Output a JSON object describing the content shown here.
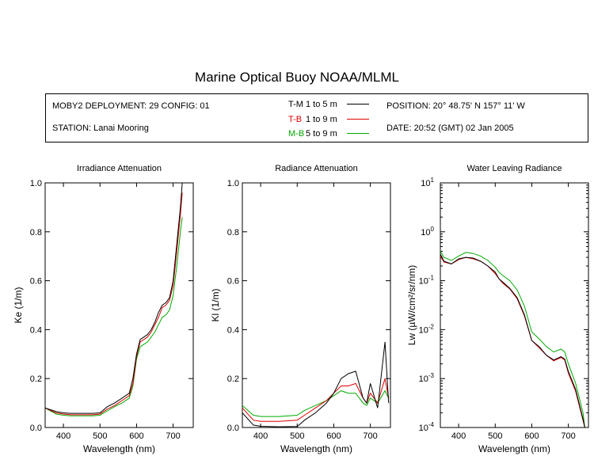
{
  "header": {
    "title": "Marine Optical Buoy NOAA/MLML",
    "deployment": "MOBY2 DEPLOYMENT: 29 CONFIG: 01",
    "station": "STATION: Lanai Mooring",
    "position": "POSITION: 20° 48.75' N   157° 11' W",
    "date": "DATE: 20:52 (GMT) 02 Jan 2005"
  },
  "legend": [
    {
      "label": "T-M",
      "range": "1 to 5  m",
      "color": "#000000",
      "label_color": "#000000"
    },
    {
      "label": "T-B",
      "range": "1 to 9  m",
      "color": "#dd0000",
      "label_color": "#dd0000"
    },
    {
      "label": "M-B",
      "range": "5 to 9  m",
      "color": "#00aa00",
      "label_color": "#00aa00"
    }
  ],
  "chart_data": [
    {
      "type": "line",
      "title": "Irradiance Attenuation",
      "xlabel": "Wavelength (nm)",
      "ylabel": "Ke  (1/m)",
      "xlim": [
        350,
        755
      ],
      "ylim": [
        0,
        1.0
      ],
      "yscale": "linear",
      "xticks": [
        "400",
        "500",
        "600",
        "700"
      ],
      "yticks": [
        "0.0",
        "0.2",
        "0.4",
        "0.6",
        "0.8",
        "1.0"
      ],
      "x": [
        350,
        380,
        400,
        420,
        450,
        480,
        500,
        520,
        540,
        560,
        580,
        590,
        600,
        610,
        620,
        630,
        640,
        650,
        660,
        670,
        680,
        690,
        700,
        710,
        720,
        725
      ],
      "series": [
        {
          "name": "T-M",
          "values": [
            0.08,
            0.065,
            0.06,
            0.058,
            0.058,
            0.058,
            0.06,
            0.085,
            0.1,
            0.12,
            0.14,
            0.2,
            0.3,
            0.36,
            0.37,
            0.38,
            0.4,
            0.43,
            0.47,
            0.5,
            0.51,
            0.53,
            0.6,
            0.75,
            0.9,
            1.0
          ]
        },
        {
          "name": "T-B",
          "values": [
            0.08,
            0.06,
            0.055,
            0.052,
            0.052,
            0.052,
            0.055,
            0.075,
            0.09,
            0.11,
            0.13,
            0.18,
            0.29,
            0.35,
            0.36,
            0.37,
            0.39,
            0.42,
            0.45,
            0.49,
            0.5,
            0.52,
            0.58,
            0.72,
            0.87,
            0.96
          ]
        },
        {
          "name": "M-B",
          "values": [
            0.08,
            0.055,
            0.05,
            0.048,
            0.048,
            0.048,
            0.05,
            0.068,
            0.085,
            0.1,
            0.12,
            0.17,
            0.28,
            0.33,
            0.34,
            0.35,
            0.37,
            0.39,
            0.42,
            0.45,
            0.46,
            0.48,
            0.54,
            0.66,
            0.8,
            0.86
          ]
        }
      ]
    },
    {
      "type": "line",
      "title": "Radiance Attenuation",
      "xlabel": "Wavelength (nm)",
      "ylabel": "Kl  (1/m)",
      "xlim": [
        350,
        755
      ],
      "ylim": [
        0,
        1.0
      ],
      "yscale": "linear",
      "xticks": [
        "400",
        "500",
        "600",
        "700"
      ],
      "yticks": [
        "0.0",
        "0.2",
        "0.4",
        "0.6",
        "0.8",
        "1.0"
      ],
      "x": [
        350,
        380,
        400,
        450,
        500,
        520,
        550,
        580,
        600,
        620,
        640,
        660,
        680,
        690,
        700,
        720,
        740,
        750
      ],
      "series": [
        {
          "name": "T-M",
          "values": [
            0.06,
            0.01,
            0.005,
            0.003,
            0.004,
            0.03,
            0.06,
            0.1,
            0.14,
            0.2,
            0.22,
            0.23,
            0.12,
            0.1,
            0.18,
            0.08,
            0.35,
            0.1
          ]
        },
        {
          "name": "T-B",
          "values": [
            0.08,
            0.03,
            0.025,
            0.025,
            0.03,
            0.05,
            0.08,
            0.11,
            0.14,
            0.17,
            0.17,
            0.18,
            0.12,
            0.1,
            0.14,
            0.1,
            0.2,
            0.12
          ]
        },
        {
          "name": "M-B",
          "values": [
            0.09,
            0.05,
            0.045,
            0.045,
            0.05,
            0.07,
            0.09,
            0.11,
            0.13,
            0.15,
            0.14,
            0.14,
            0.1,
            0.09,
            0.12,
            0.1,
            0.15,
            0.12
          ]
        }
      ]
    },
    {
      "type": "line",
      "title": "Water Leaving Radiance",
      "xlabel": "Wavelength (nm)",
      "ylabel": "Lw  (µW/cm²/sr/nm)",
      "xlim": [
        350,
        755
      ],
      "ylim": [
        0.0001,
        10
      ],
      "yscale": "log",
      "xticks": [
        "400",
        "500",
        "600",
        "700"
      ],
      "yticks": [
        {
          "base": "10",
          "exp": "1"
        },
        {
          "base": "10",
          "exp": "0"
        },
        {
          "base": "10",
          "exp": "-1"
        },
        {
          "base": "10",
          "exp": "-2"
        },
        {
          "base": "10",
          "exp": "-3"
        },
        {
          "base": "10",
          "exp": "-4"
        }
      ],
      "x": [
        350,
        360,
        380,
        400,
        420,
        440,
        460,
        480,
        500,
        510,
        520,
        540,
        560,
        580,
        600,
        620,
        640,
        660,
        680,
        690,
        700,
        720,
        740,
        745
      ],
      "series": [
        {
          "name": "T-M",
          "values": [
            0.35,
            0.25,
            0.22,
            0.28,
            0.3,
            0.29,
            0.25,
            0.2,
            0.15,
            0.11,
            0.095,
            0.07,
            0.045,
            0.02,
            0.006,
            0.0045,
            0.003,
            0.0024,
            0.0028,
            0.0025,
            0.0014,
            0.0006,
            0.00015,
            0.0001
          ]
        },
        {
          "name": "T-B",
          "values": [
            0.32,
            0.24,
            0.22,
            0.27,
            0.3,
            0.28,
            0.25,
            0.2,
            0.14,
            0.11,
            0.09,
            0.068,
            0.043,
            0.019,
            0.006,
            0.0043,
            0.003,
            0.0023,
            0.0027,
            0.0024,
            0.0013,
            0.00055,
            0.00014,
            0.0001
          ]
        },
        {
          "name": "M-B",
          "values": [
            0.4,
            0.3,
            0.26,
            0.32,
            0.38,
            0.36,
            0.32,
            0.26,
            0.19,
            0.15,
            0.13,
            0.1,
            0.065,
            0.03,
            0.009,
            0.0065,
            0.0045,
            0.0035,
            0.004,
            0.0035,
            0.002,
            0.0008,
            0.0002,
            0.0001
          ]
        }
      ]
    }
  ]
}
